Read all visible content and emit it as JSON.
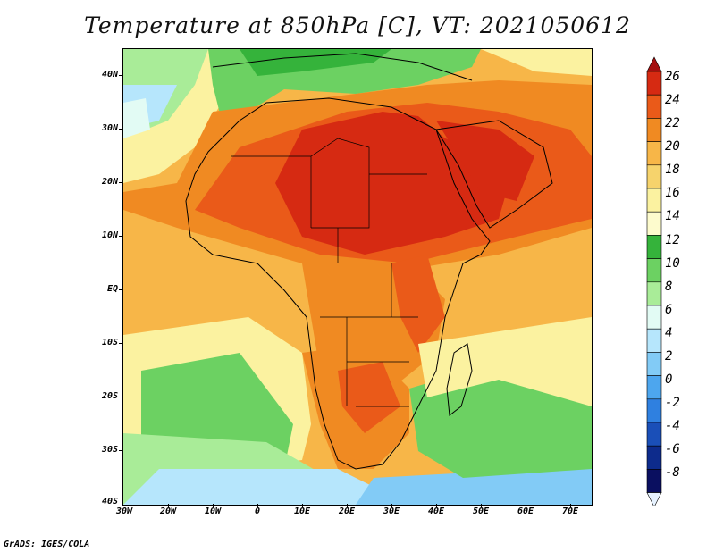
{
  "title": "Temperature at 850hPa [C], VT: 2021050612",
  "credit": "GrADS: IGES/COLA",
  "map": {
    "region": "Africa",
    "lat_labels": [
      "40N",
      "30N",
      "20N",
      "10N",
      "EQ",
      "10S",
      "20S",
      "30S",
      "40S"
    ],
    "lon_labels": [
      "30W",
      "20W",
      "10W",
      "0",
      "10E",
      "20E",
      "30E",
      "40E",
      "50E",
      "60E",
      "70E"
    ]
  },
  "colorbar": {
    "labels": [
      "26",
      "24",
      "22",
      "20",
      "18",
      "16",
      "14",
      "12",
      "10",
      "8",
      "6",
      "4",
      "2",
      "0",
      "-2",
      "-4",
      "-6",
      "-8"
    ],
    "colors": [
      "#a50f0f",
      "#d62a12",
      "#ea5a19",
      "#f08a22",
      "#f7b648",
      "#f6d36c",
      "#fbf2a0",
      "#fdfbcd",
      "#35b33b",
      "#6cd162",
      "#a9ec98",
      "#e2fbf4",
      "#b6e6fc",
      "#82cbf6",
      "#4da6ee",
      "#2f80e0",
      "#1a4fb8",
      "#0d2b8c",
      "#0a0f60"
    ],
    "low_end_color": "#e6f2ff"
  }
}
